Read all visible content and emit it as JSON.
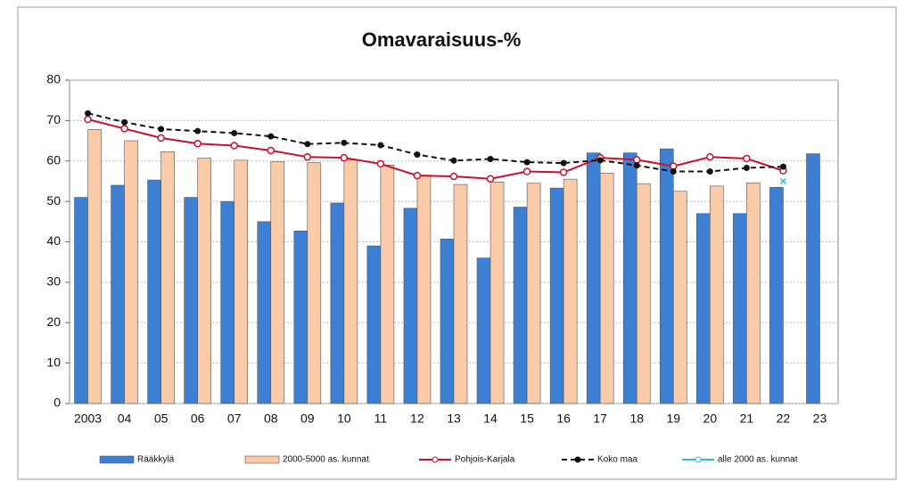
{
  "chart_data": {
    "type": "bar",
    "title": "Omavaraisuus-%",
    "categories": [
      "2003",
      "04",
      "05",
      "06",
      "07",
      "08",
      "09",
      "10",
      "11",
      "12",
      "13",
      "14",
      "15",
      "16",
      "17",
      "18",
      "19",
      "20",
      "21",
      "22",
      "23"
    ],
    "ylim": [
      0,
      80
    ],
    "yticks": [
      0,
      10,
      20,
      30,
      40,
      50,
      60,
      70,
      80
    ],
    "grid": true,
    "legend": "bottom",
    "series": [
      {
        "name": "Rääkkylä",
        "type": "bar",
        "color": "#3d7fd3",
        "values": [
          51,
          54,
          55.3,
          51,
          50,
          45,
          42.7,
          49.6,
          39,
          48.3,
          40.7,
          36,
          48.6,
          53.3,
          62,
          62,
          63,
          47,
          47,
          53.5,
          61.8
        ]
      },
      {
        "name": "2000-5000 as. kunnat",
        "type": "bar",
        "color": "#f9cba8",
        "values": [
          67.8,
          65,
          62.3,
          60.7,
          60.2,
          59.8,
          59.6,
          60.2,
          59,
          56.5,
          54.2,
          54.8,
          54.5,
          55.5,
          57,
          54.4,
          52.5,
          53.8,
          54.6,
          null,
          null
        ]
      },
      {
        "name": "Pohjois-Karjala",
        "type": "line",
        "color": "#c8102e",
        "values": [
          70.3,
          68,
          65.7,
          64.3,
          63.8,
          62.6,
          61,
          60.8,
          59.3,
          56.4,
          56.2,
          55.6,
          57.4,
          57.2,
          60.8,
          60.3,
          58.7,
          61,
          60.6,
          57.6,
          null
        ]
      },
      {
        "name": "Koko maa",
        "type": "line",
        "dashed": true,
        "color": "#111111",
        "values": [
          71.8,
          69.6,
          67.9,
          67.4,
          66.9,
          66.1,
          64.2,
          64.5,
          63.9,
          61.6,
          60.1,
          60.5,
          59.7,
          59.5,
          60.2,
          58.9,
          57.4,
          57.4,
          58.3,
          58.6,
          null
        ]
      },
      {
        "name": "alle 2000 as. kunnat",
        "type": "line",
        "color": "#30b8e0",
        "values": [
          null,
          null,
          null,
          null,
          null,
          null,
          null,
          null,
          null,
          null,
          null,
          null,
          null,
          null,
          null,
          null,
          null,
          null,
          null,
          55,
          null
        ]
      }
    ]
  }
}
